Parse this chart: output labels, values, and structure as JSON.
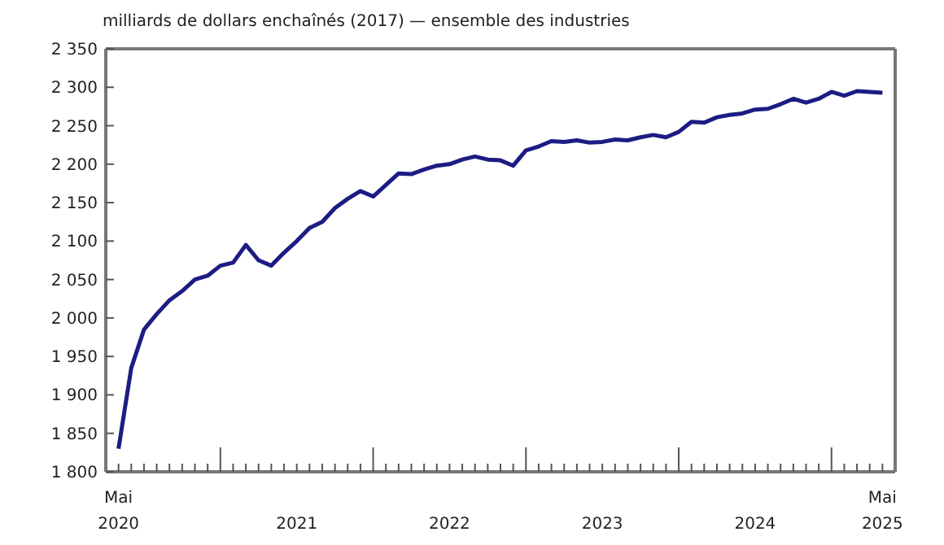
{
  "chart_data": {
    "type": "line",
    "ylabel": "milliards de dollars enchaînés (2017) — ensemble des industries",
    "x": [
      "2020-05",
      "2020-06",
      "2020-07",
      "2020-08",
      "2020-09",
      "2020-10",
      "2020-11",
      "2020-12",
      "2021-01",
      "2021-02",
      "2021-03",
      "2021-04",
      "2021-05",
      "2021-06",
      "2021-07",
      "2021-08",
      "2021-09",
      "2021-10",
      "2021-11",
      "2021-12",
      "2022-01",
      "2022-02",
      "2022-03",
      "2022-04",
      "2022-05",
      "2022-06",
      "2022-07",
      "2022-08",
      "2022-09",
      "2022-10",
      "2022-11",
      "2022-12",
      "2023-01",
      "2023-02",
      "2023-03",
      "2023-04",
      "2023-05",
      "2023-06",
      "2023-07",
      "2023-08",
      "2023-09",
      "2023-10",
      "2023-11",
      "2023-12",
      "2024-01",
      "2024-02",
      "2024-03",
      "2024-04",
      "2024-05",
      "2024-06",
      "2024-07",
      "2024-08",
      "2024-09",
      "2024-10",
      "2024-11",
      "2024-12",
      "2025-01",
      "2025-02",
      "2025-03",
      "2025-04",
      "2025-05"
    ],
    "series": [
      {
        "color": "#1c1c84",
        "values": [
          1830,
          1935,
          1985,
          2005,
          2023,
          2035,
          2050,
          2055,
          2068,
          2072,
          2095,
          2075,
          2068,
          2085,
          2100,
          2117,
          2125,
          2143,
          2155,
          2165,
          2158,
          2173,
          2188,
          2187,
          2193,
          2198,
          2200,
          2206,
          2210,
          2206,
          2205,
          2198,
          2218,
          2223,
          2230,
          2229,
          2231,
          2228,
          2229,
          2232,
          2231,
          2235,
          2238,
          2235,
          2242,
          2255,
          2254,
          2261,
          2264,
          2266,
          2271,
          2272,
          2278,
          2285,
          2280,
          2285,
          2294,
          2289,
          2295,
          2294,
          2293
        ]
      }
    ],
    "xlim": [
      "2020-04",
      "2025-06"
    ],
    "xticks": [
      {
        "value": "2020-05",
        "label": "Mai 2020"
      },
      {
        "value": "2020-06",
        "label": null
      },
      {
        "value": "2020-07",
        "label": null
      },
      {
        "value": "2020-08",
        "label": null
      },
      {
        "value": "2020-09",
        "label": null
      },
      {
        "value": "2020-10",
        "label": null
      },
      {
        "value": "2020-11",
        "label": null
      },
      {
        "value": "2020-12",
        "label": null
      },
      {
        "value": "2021-01",
        "label": null
      },
      {
        "value": "2021-02",
        "label": null
      },
      {
        "value": "2021-03",
        "label": null
      },
      {
        "value": "2021-04",
        "label": null
      },
      {
        "value": "2021-05",
        "label": null
      },
      {
        "value": "2021-06",
        "label": null
      },
      {
        "value": "2021-07",
        "label": "2021"
      },
      {
        "value": "2021-08",
        "label": null
      },
      {
        "value": "2021-09",
        "label": null
      },
      {
        "value": "2021-10",
        "label": null
      },
      {
        "value": "2021-11",
        "label": null
      },
      {
        "value": "2021-12",
        "label": null
      },
      {
        "value": "2022-01",
        "label": null
      },
      {
        "value": "2022-02",
        "label": null
      },
      {
        "value": "2022-03",
        "label": null
      },
      {
        "value": "2022-04",
        "label": null
      },
      {
        "value": "2022-05",
        "label": null
      },
      {
        "value": "2022-06",
        "label": null
      },
      {
        "value": "2022-07",
        "label": "2022"
      },
      {
        "value": "2022-08",
        "label": null
      },
      {
        "value": "2022-09",
        "label": null
      },
      {
        "value": "2022-10",
        "label": null
      },
      {
        "value": "2022-11",
        "label": null
      },
      {
        "value": "2022-12",
        "label": null
      },
      {
        "value": "2023-01",
        "label": null
      },
      {
        "value": "2023-02",
        "label": null
      },
      {
        "value": "2023-03",
        "label": null
      },
      {
        "value": "2023-04",
        "label": null
      },
      {
        "value": "2023-05",
        "label": null
      },
      {
        "value": "2023-06",
        "label": null
      },
      {
        "value": "2023-07",
        "label": "2023"
      },
      {
        "value": "2023-08",
        "label": null
      },
      {
        "value": "2023-09",
        "label": null
      },
      {
        "value": "2023-10",
        "label": null
      },
      {
        "value": "2023-11",
        "label": null
      },
      {
        "value": "2023-12",
        "label": null
      },
      {
        "value": "2024-01",
        "label": null
      },
      {
        "value": "2024-02",
        "label": null
      },
      {
        "value": "2024-03",
        "label": null
      },
      {
        "value": "2024-04",
        "label": null
      },
      {
        "value": "2024-05",
        "label": null
      },
      {
        "value": "2024-06",
        "label": null
      },
      {
        "value": "2024-07",
        "label": "2024"
      },
      {
        "value": "2024-08",
        "label": null
      },
      {
        "value": "2024-09",
        "label": null
      },
      {
        "value": "2024-10",
        "label": null
      },
      {
        "value": "2024-11",
        "label": null
      },
      {
        "value": "2024-12",
        "label": null
      },
      {
        "value": "2025-01",
        "label": null
      },
      {
        "value": "2025-02",
        "label": null
      },
      {
        "value": "2025-03",
        "label": null
      },
      {
        "value": "2025-04",
        "label": null
      },
      {
        "value": "2025-05",
        "label": "Mai 2025"
      }
    ],
    "ylim": [
      1800,
      2350
    ],
    "yticks": [
      {
        "value": 1800,
        "label": "1 800"
      },
      {
        "value": 1850,
        "label": "1 850"
      },
      {
        "value": 1900,
        "label": "1 900"
      },
      {
        "value": 1950,
        "label": "1 950"
      },
      {
        "value": 2000,
        "label": "2 000"
      },
      {
        "value": 2050,
        "label": "2 050"
      },
      {
        "value": 2100,
        "label": "2 100"
      },
      {
        "value": 2150,
        "label": "2 150"
      },
      {
        "value": 2200,
        "label": "2 200"
      },
      {
        "value": 2250,
        "label": "2 250"
      },
      {
        "value": 2300,
        "label": "2 300"
      },
      {
        "value": 2350,
        "label": "2 350"
      }
    ],
    "grid": false,
    "legend": false,
    "marker": "none",
    "line_style": "solid"
  }
}
